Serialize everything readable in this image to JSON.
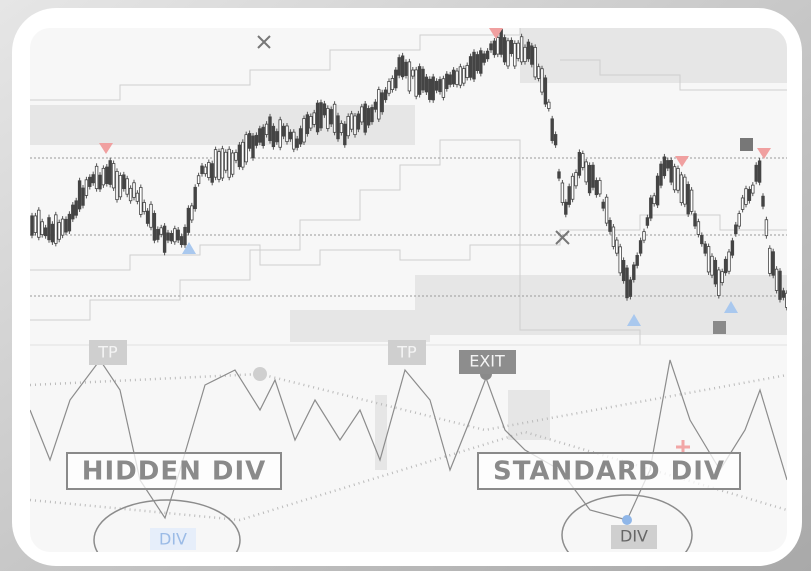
{
  "labels": {
    "tp_left": "TP",
    "tp_right": "TP",
    "exit": "EXIT",
    "hidden_div": "HIDDEN DIV",
    "standard_div": "STANDARD DIV",
    "div_left": "DIV",
    "div_right": "DIV"
  }
}
